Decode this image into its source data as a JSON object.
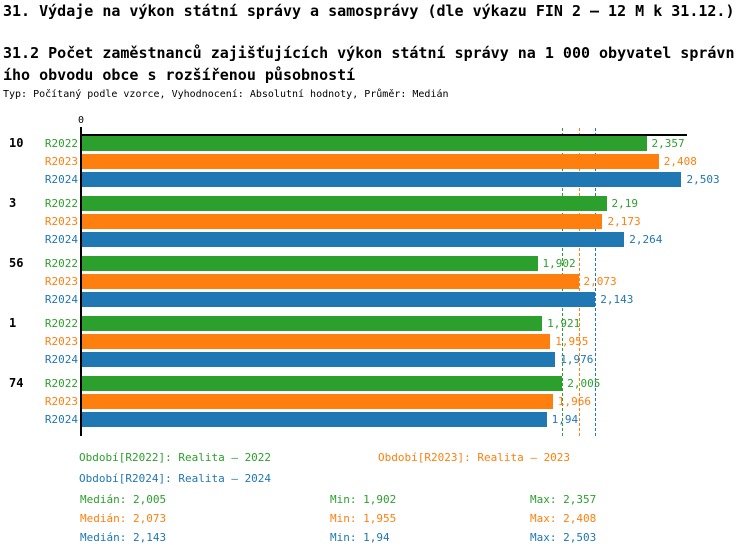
{
  "header": {
    "title": "31. Výdaje na výkon státní správy a samosprávy (dle výkazu FIN 2 – 12 M k 31.12.)",
    "subtitle": "31.2 Počet zaměstnanců zajišťujících výkon státní správy na 1 000 obyvatel správního obvodu obce s rozšířenou působností",
    "meta": "Typ: Počítaný podle vzorce, Vyhodnocení: Absolutní hodnoty, Průměr: Medián"
  },
  "colors": {
    "r2022": "#2ca02c",
    "r2023": "#ff7f0e",
    "r2024": "#1f77b4",
    "axis": "#000000",
    "background": "#ffffff"
  },
  "chart_data": {
    "type": "bar",
    "orientation": "horizontal",
    "title": "31.2 Počet zaměstnanců zajišťujících výkon státní správy na 1 000 obyvatel správního obvodu obce s rozšířenou působností",
    "xlabel": "",
    "ylabel": "",
    "xlim": [
      0,
      2.526
    ],
    "x_tick_labels": [
      "0"
    ],
    "grid": false,
    "legend_position": "bottom",
    "series_names": [
      "R2022",
      "R2023",
      "R2024"
    ],
    "series_colors": [
      "#2ca02c",
      "#ff7f0e",
      "#1f77b4"
    ],
    "categories": [
      "10",
      "3",
      "56",
      "1",
      "74"
    ],
    "series": [
      {
        "name": "R2022",
        "values": [
          2.357,
          2.19,
          1.902,
          1.921,
          2.005
        ],
        "value_labels": [
          "2,357",
          "2,19",
          "1,902",
          "1,921",
          "2,005"
        ]
      },
      {
        "name": "R2023",
        "values": [
          2.408,
          2.173,
          2.073,
          1.955,
          1.966
        ],
        "value_labels": [
          "2,408",
          "2,173",
          "2,073",
          "1,955",
          "1,966"
        ]
      },
      {
        "name": "R2024",
        "values": [
          2.503,
          2.264,
          2.143,
          1.976,
          1.94
        ],
        "value_labels": [
          "2,503",
          "2,264",
          "2,143",
          "1,976",
          "1,94"
        ]
      }
    ],
    "median_lines": [
      {
        "series": "R2022",
        "value": 2.005,
        "color": "#2ca02c"
      },
      {
        "series": "R2023",
        "value": 2.073,
        "color": "#ff7f0e"
      },
      {
        "series": "R2024",
        "value": 2.143,
        "color": "#1f77b4"
      }
    ],
    "legend": [
      {
        "id": "r2022",
        "label": "Období[R2022]: Realita – 2022",
        "color": "#2ca02c"
      },
      {
        "id": "r2023",
        "label": "Období[R2023]: Realita – 2023",
        "color": "#ff7f0e"
      },
      {
        "id": "r2024",
        "label": "Období[R2024]: Realita – 2024",
        "color": "#1f77b4"
      }
    ],
    "stats": [
      {
        "id": "r2022",
        "color": "#2ca02c",
        "median": "Medián: 2,005",
        "min": "Min: 1,902",
        "max": "Max: 2,357"
      },
      {
        "id": "r2023",
        "color": "#ff7f0e",
        "median": "Medián: 2,073",
        "min": "Min: 1,955",
        "max": "Max: 2,408"
      },
      {
        "id": "r2024",
        "color": "#1f77b4",
        "median": "Medián: 2,143",
        "min": "Min: 1,94",
        "max": "Max: 2,503"
      }
    ]
  }
}
